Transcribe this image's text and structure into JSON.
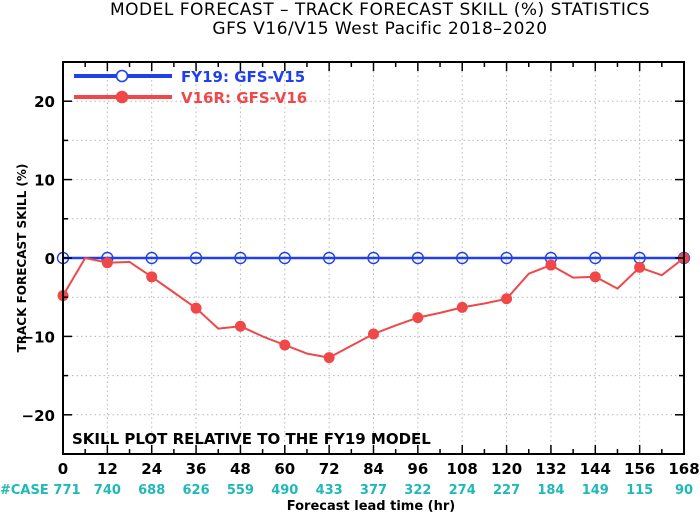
{
  "chart_data": {
    "type": "line",
    "title": "MODEL FORECAST – TRACK FORECAST SKILL (%) STATISTICS",
    "subtitle": "GFS V16/V15 West Pacific 2018–2020",
    "xlabel": "Forecast lead time (hr)",
    "ylabel": "TRACK FORECAST SKILL (%)",
    "xlim": [
      0,
      168
    ],
    "ylim": [
      -25,
      25
    ],
    "x_ticks": [
      0,
      12,
      24,
      36,
      48,
      60,
      72,
      84,
      96,
      108,
      120,
      132,
      144,
      156,
      168
    ],
    "y_ticks": [
      -20,
      -10,
      0,
      10,
      20
    ],
    "grid": true,
    "legend_position": "top-left",
    "annotation": "SKILL PLOT RELATIVE TO THE FY19 MODEL",
    "case_label": "#CASE",
    "case_counts": [
      "771",
      "740",
      "688",
      "626",
      "559",
      "490",
      "433",
      "377",
      "322",
      "274",
      "227",
      "184",
      "149",
      "115",
      "90"
    ],
    "series": [
      {
        "name": "FY19: GFS-V15",
        "color": "#2040f0",
        "marker": "open-circle",
        "x": [
          0,
          12,
          24,
          36,
          48,
          60,
          72,
          84,
          96,
          108,
          120,
          132,
          144,
          156,
          168
        ],
        "y": [
          0,
          0,
          0,
          0,
          0,
          0,
          0,
          0,
          0,
          0,
          0,
          0,
          0,
          0,
          0
        ],
        "marked_x": [
          0,
          12,
          24,
          36,
          48,
          60,
          72,
          84,
          96,
          108,
          120,
          132,
          144,
          156,
          168
        ]
      },
      {
        "name": "V16R: GFS-V16",
        "color": "#f04848",
        "marker": "filled-circle",
        "x": [
          0,
          6,
          12,
          18,
          24,
          30,
          36,
          42,
          48,
          54,
          60,
          66,
          72,
          78,
          84,
          90,
          96,
          102,
          108,
          114,
          120,
          126,
          132,
          138,
          144,
          150,
          156,
          162,
          168
        ],
        "y": [
          -4.8,
          0.0,
          -0.6,
          -0.5,
          -2.4,
          -4.4,
          -6.4,
          -9.0,
          -8.7,
          -10.0,
          -11.1,
          -12.2,
          -12.7,
          -11.2,
          -9.7,
          -8.6,
          -7.6,
          -7.0,
          -6.3,
          -5.8,
          -5.2,
          -2.0,
          -0.9,
          -2.5,
          -2.4,
          -3.9,
          -1.2,
          -2.2,
          0.0
        ],
        "marked_x": [
          0,
          12,
          24,
          36,
          48,
          60,
          72,
          84,
          96,
          108,
          120,
          132,
          144,
          156,
          168
        ]
      }
    ]
  }
}
